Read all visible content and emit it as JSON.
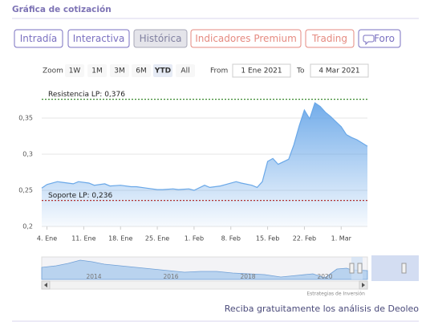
{
  "header": {
    "title": "Gráfica de cotización"
  },
  "tabs": [
    "Intradía",
    "Interactiva",
    "Histórica",
    "Indicadores Premium",
    "Trading",
    "Foro"
  ],
  "active_tab": 2,
  "range_selector": {
    "label": "Zoom",
    "buttons": [
      "1W",
      "1M",
      "3M",
      "6M",
      "YTD",
      "All"
    ],
    "active": 4,
    "from_label": "From",
    "from": "1 Ene 2021",
    "to_label": "To",
    "to": "4 Mar 2021"
  },
  "chart_data": {
    "type": "area",
    "color": "#6aa8e8",
    "grid": true,
    "x": [
      3,
      4,
      6,
      7,
      9,
      10,
      12,
      13,
      15,
      16,
      18,
      20,
      21,
      23,
      25,
      26,
      28,
      29,
      31,
      32,
      34,
      35,
      37,
      38,
      40,
      41,
      43,
      44,
      45,
      46,
      47,
      48,
      50,
      51,
      52,
      53,
      54,
      55,
      56,
      57,
      58,
      59,
      60,
      61,
      62,
      63,
      65
    ],
    "values": [
      0.253,
      0.258,
      0.262,
      0.261,
      0.259,
      0.262,
      0.26,
      0.257,
      0.259,
      0.256,
      0.257,
      0.255,
      0.255,
      0.253,
      0.251,
      0.251,
      0.252,
      0.251,
      0.252,
      0.25,
      0.257,
      0.254,
      0.256,
      0.258,
      0.262,
      0.26,
      0.257,
      0.254,
      0.262,
      0.29,
      0.294,
      0.286,
      0.293,
      0.313,
      0.339,
      0.361,
      0.349,
      0.371,
      0.366,
      0.358,
      0.352,
      0.345,
      0.338,
      0.327,
      0.323,
      0.32,
      0.311
    ],
    "xlim": [
      3,
      65
    ],
    "xticks": [
      {
        "value": 4,
        "label": "4. Ene"
      },
      {
        "value": 11,
        "label": "11. Ene"
      },
      {
        "value": 18,
        "label": "18. Ene"
      },
      {
        "value": 25,
        "label": "25. Ene"
      },
      {
        "value": 32,
        "label": "1. Feb"
      },
      {
        "value": 39,
        "label": "8. Feb"
      },
      {
        "value": 46,
        "label": "15. Feb"
      },
      {
        "value": 53,
        "label": "22. Feb"
      },
      {
        "value": 60,
        "label": "1. Mar"
      }
    ],
    "ylim": [
      0.2,
      0.385
    ],
    "yticks": [
      {
        "value": 0.2,
        "label": "0,2"
      },
      {
        "value": 0.25,
        "label": "0,25"
      },
      {
        "value": 0.3,
        "label": "0,3"
      },
      {
        "value": 0.35,
        "label": "0,35"
      }
    ],
    "plot_lines": [
      {
        "label": "Resistencia LP: 0,376",
        "value": 0.376,
        "color": "#3a8a2e"
      },
      {
        "label": "Soporte LP: 0,236",
        "value": 0.236,
        "color": "#b03030"
      }
    ]
  },
  "navigator": {
    "years": [
      "2014",
      "2016",
      "2018",
      "2020"
    ],
    "credit": "Estrategias de Inversión"
  },
  "footer": {
    "text": "Reciba gratuitamente los análisis de Deoleo"
  }
}
